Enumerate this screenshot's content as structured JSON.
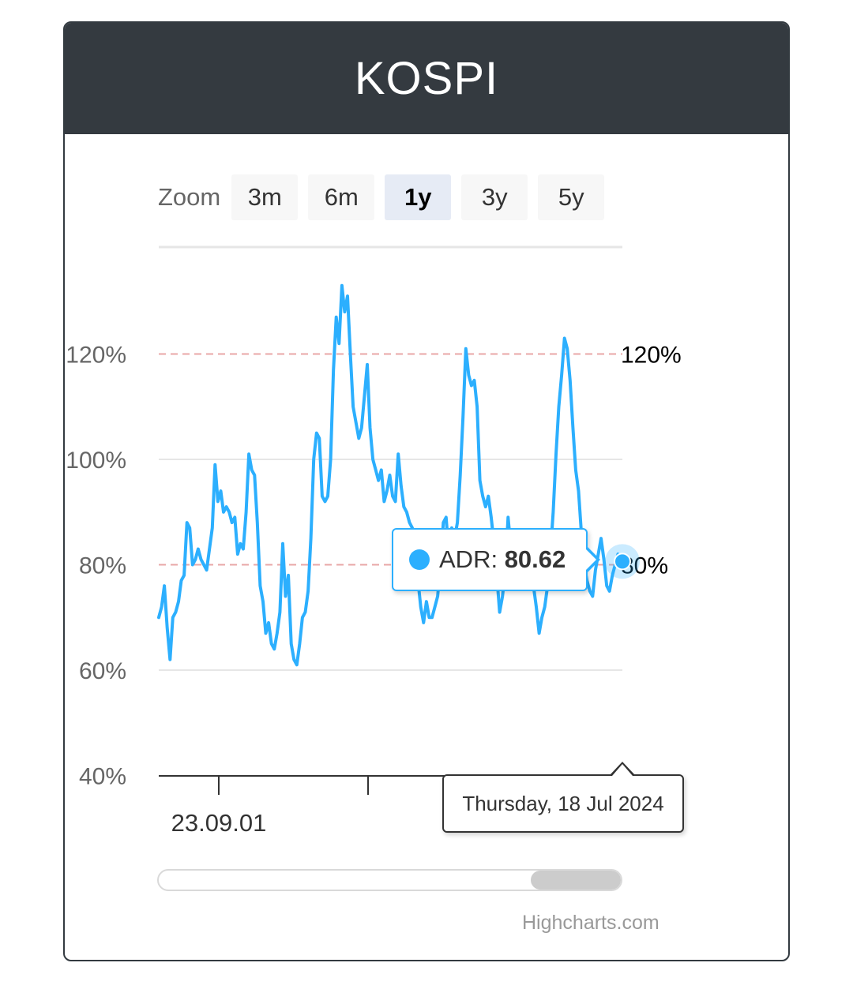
{
  "header": {
    "title": "KOSPI"
  },
  "zoom": {
    "label": "Zoom",
    "buttons": [
      "3m",
      "6m",
      "1y",
      "3y",
      "5y"
    ],
    "active": "1y"
  },
  "tooltip": {
    "series": "ADR",
    "value": "80.62",
    "color": "#2caffe"
  },
  "date_tooltip": {
    "text": "Thursday, 18 Jul 2024"
  },
  "credits": {
    "text": "Highcharts.com"
  },
  "colors": {
    "series": "#2caffe",
    "plot_line": "#e8a7a7",
    "header_bg": "#343a40"
  },
  "chart_data": {
    "type": "line",
    "series": [
      {
        "name": "ADR",
        "values": [
          70,
          72,
          76,
          68,
          62,
          70,
          71,
          73,
          77,
          78,
          88,
          87,
          80,
          81,
          83,
          81,
          80,
          79,
          83,
          87,
          99,
          92,
          94,
          90,
          91,
          90,
          88,
          89,
          82,
          84,
          83,
          90,
          101,
          98,
          97,
          88,
          76,
          73,
          67,
          69,
          65,
          64,
          67,
          71,
          84,
          74,
          78,
          65,
          62,
          61,
          65,
          70,
          71,
          75,
          85,
          100,
          105,
          104,
          93,
          92,
          93,
          100,
          117,
          127,
          122,
          133,
          128,
          131,
          120,
          110,
          107,
          104,
          106,
          112,
          118,
          106,
          100,
          98,
          96,
          98,
          92,
          94,
          97,
          93,
          92,
          101,
          95,
          91,
          90,
          88,
          87,
          84,
          77,
          72,
          69,
          73,
          70,
          70,
          72,
          74,
          80,
          88,
          89,
          82,
          87,
          85,
          88,
          97,
          108,
          121,
          116,
          114,
          115,
          110,
          96,
          93,
          91,
          93,
          89,
          84,
          78,
          71,
          74,
          79,
          89,
          83,
          82,
          81,
          80,
          84,
          80,
          78,
          76,
          76,
          72,
          67,
          70,
          72,
          76,
          82,
          90,
          101,
          110,
          116,
          123,
          121,
          115,
          106,
          98,
          94,
          86,
          80,
          77,
          75,
          74,
          79,
          82,
          85,
          81,
          76,
          75,
          78,
          80,
          82,
          81
        ],
        "last_point": 80.62
      }
    ],
    "x_labels": [
      "23.09.01"
    ],
    "y_ticks": [
      "40%",
      "60%",
      "80%",
      "100%",
      "120%"
    ],
    "ylim": [
      40,
      140
    ],
    "plot_lines": [
      {
        "value": 120,
        "label": "120%"
      },
      {
        "value": 80,
        "label": "80%"
      }
    ],
    "grid": true,
    "legend": "none"
  }
}
